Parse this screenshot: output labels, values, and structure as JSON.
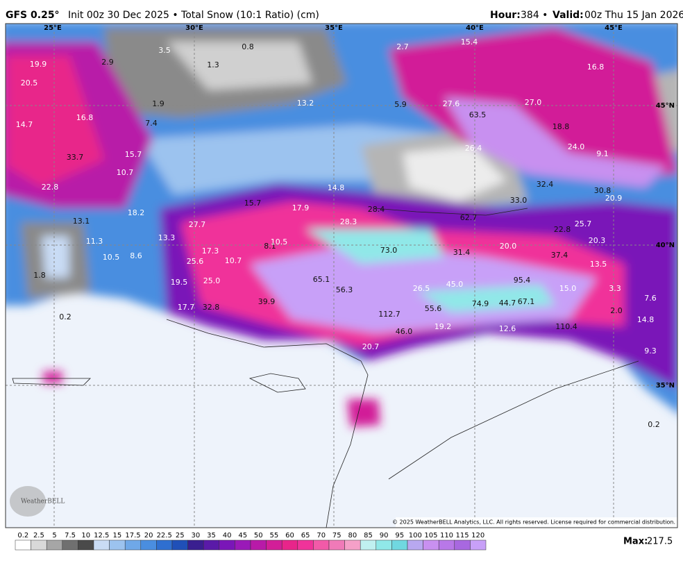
{
  "header": {
    "model": "GFS 0.25°",
    "title": "Init 00z 30 Dec 2025 • Total Snow (10:1 Ratio) (cm)",
    "hour_label": "Hour:",
    "hour": "384 •",
    "valid_label": "Valid:",
    "valid": "00z Thu 15 Jan 2026"
  },
  "grid_labels": {
    "lon": [
      "25°E",
      "30°E",
      "35°E",
      "40°E",
      "45°E"
    ],
    "lat": [
      "45°N",
      "40°N",
      "35°N"
    ]
  },
  "map_labels": [
    "19.9",
    "20.5",
    "14.7",
    "16.8",
    "33.7",
    "22.8",
    "15.7",
    "10.7",
    "2.9",
    "3.5",
    "1.9",
    "7.4",
    "0.8",
    "1.3",
    "2.7",
    "15.4",
    "16.8",
    "13.2",
    "5.9",
    "27.6",
    "63.5",
    "27.0",
    "18.8",
    "24.0",
    "9.1",
    "26.4",
    "14.8",
    "15.7",
    "17.9",
    "28.4",
    "28.3",
    "62.7",
    "33.0",
    "32.4",
    "30.8",
    "20.9",
    "22.8",
    "25.7",
    "20.3",
    "13.1",
    "18.2",
    "27.7",
    "13.3",
    "11.3",
    "10.5",
    "8.6",
    "17.3",
    "8.1",
    "10.5",
    "25.6",
    "10.7",
    "73.0",
    "31.4",
    "20.0",
    "37.4",
    "13.5",
    "19.5",
    "25.0",
    "65.1",
    "56.3",
    "26.5",
    "45.0",
    "95.4",
    "15.0",
    "3.3",
    "7.6",
    "17.7",
    "32.8",
    "39.9",
    "112.7",
    "55.6",
    "74.9",
    "44.7",
    "67.1",
    "2.0",
    "14.8",
    "46.0",
    "19.2",
    "12.6",
    "110.4",
    "20.7",
    "9.3",
    "0.2",
    "1.8",
    "0.2"
  ],
  "legend": {
    "ticks": [
      0.2,
      2.5,
      5,
      7.5,
      10,
      12.5,
      15,
      17.5,
      20,
      22.5,
      25,
      30,
      35,
      40,
      45,
      50,
      55,
      60,
      65,
      70,
      75,
      80,
      85,
      90,
      95,
      100,
      105,
      110,
      115,
      120
    ],
    "colors": [
      "#ffffff",
      "#d9d9d9",
      "#a6a6a6",
      "#707070",
      "#4a4a4a",
      "#c9dcf5",
      "#9cc3ef",
      "#6fa8e8",
      "#4a8ee0",
      "#2f6fd0",
      "#2050b8",
      "#3a1f90",
      "#5a1aa8",
      "#7a16b8",
      "#9a1ab8",
      "#b81aa8",
      "#d21e98",
      "#e8258a",
      "#f0339a",
      "#f25aa8",
      "#f07ab8",
      "#f5a0c8",
      "#c0f0f0",
      "#90e8e8",
      "#70d8e0",
      "#b8a8f0",
      "#c890f0",
      "#b878e8",
      "#a868e0",
      "#c8a0f8"
    ]
  },
  "max_label": "Max:",
  "max": "217.5",
  "copyright": "© 2025 WeatherBELL Analytics, LLC. All rights reserved. License required for commercial distribution.",
  "logo": "WeatherBELL"
}
